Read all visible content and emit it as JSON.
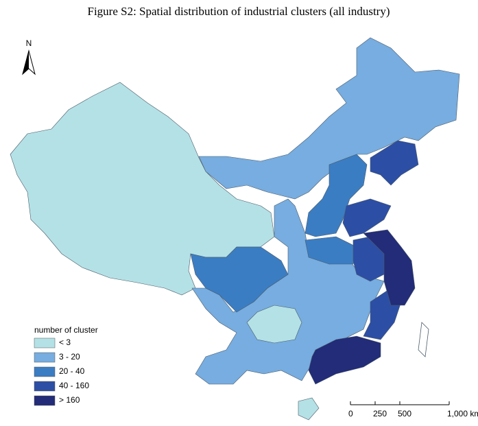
{
  "title": "Figure S2: Spatial distribution of industrial clusters (all industry)",
  "north": "N",
  "legend": {
    "title": "number of cluster",
    "items": [
      {
        "label": "< 3",
        "color": "#b4e1e5"
      },
      {
        "label": "3 - 20",
        "color": "#77ade0"
      },
      {
        "label": "20 - 40",
        "color": "#3b7dc3"
      },
      {
        "label": "40 - 160",
        "color": "#2c4ea5"
      },
      {
        "label": "> 160",
        "color": "#222c78"
      }
    ]
  },
  "scale_bar": {
    "ticks": [
      {
        "value": 0,
        "label": "0"
      },
      {
        "value": 250,
        "label": "250"
      },
      {
        "value": 500,
        "label": "500"
      },
      {
        "value": 1000,
        "label": "1,000 km"
      }
    ]
  }
}
